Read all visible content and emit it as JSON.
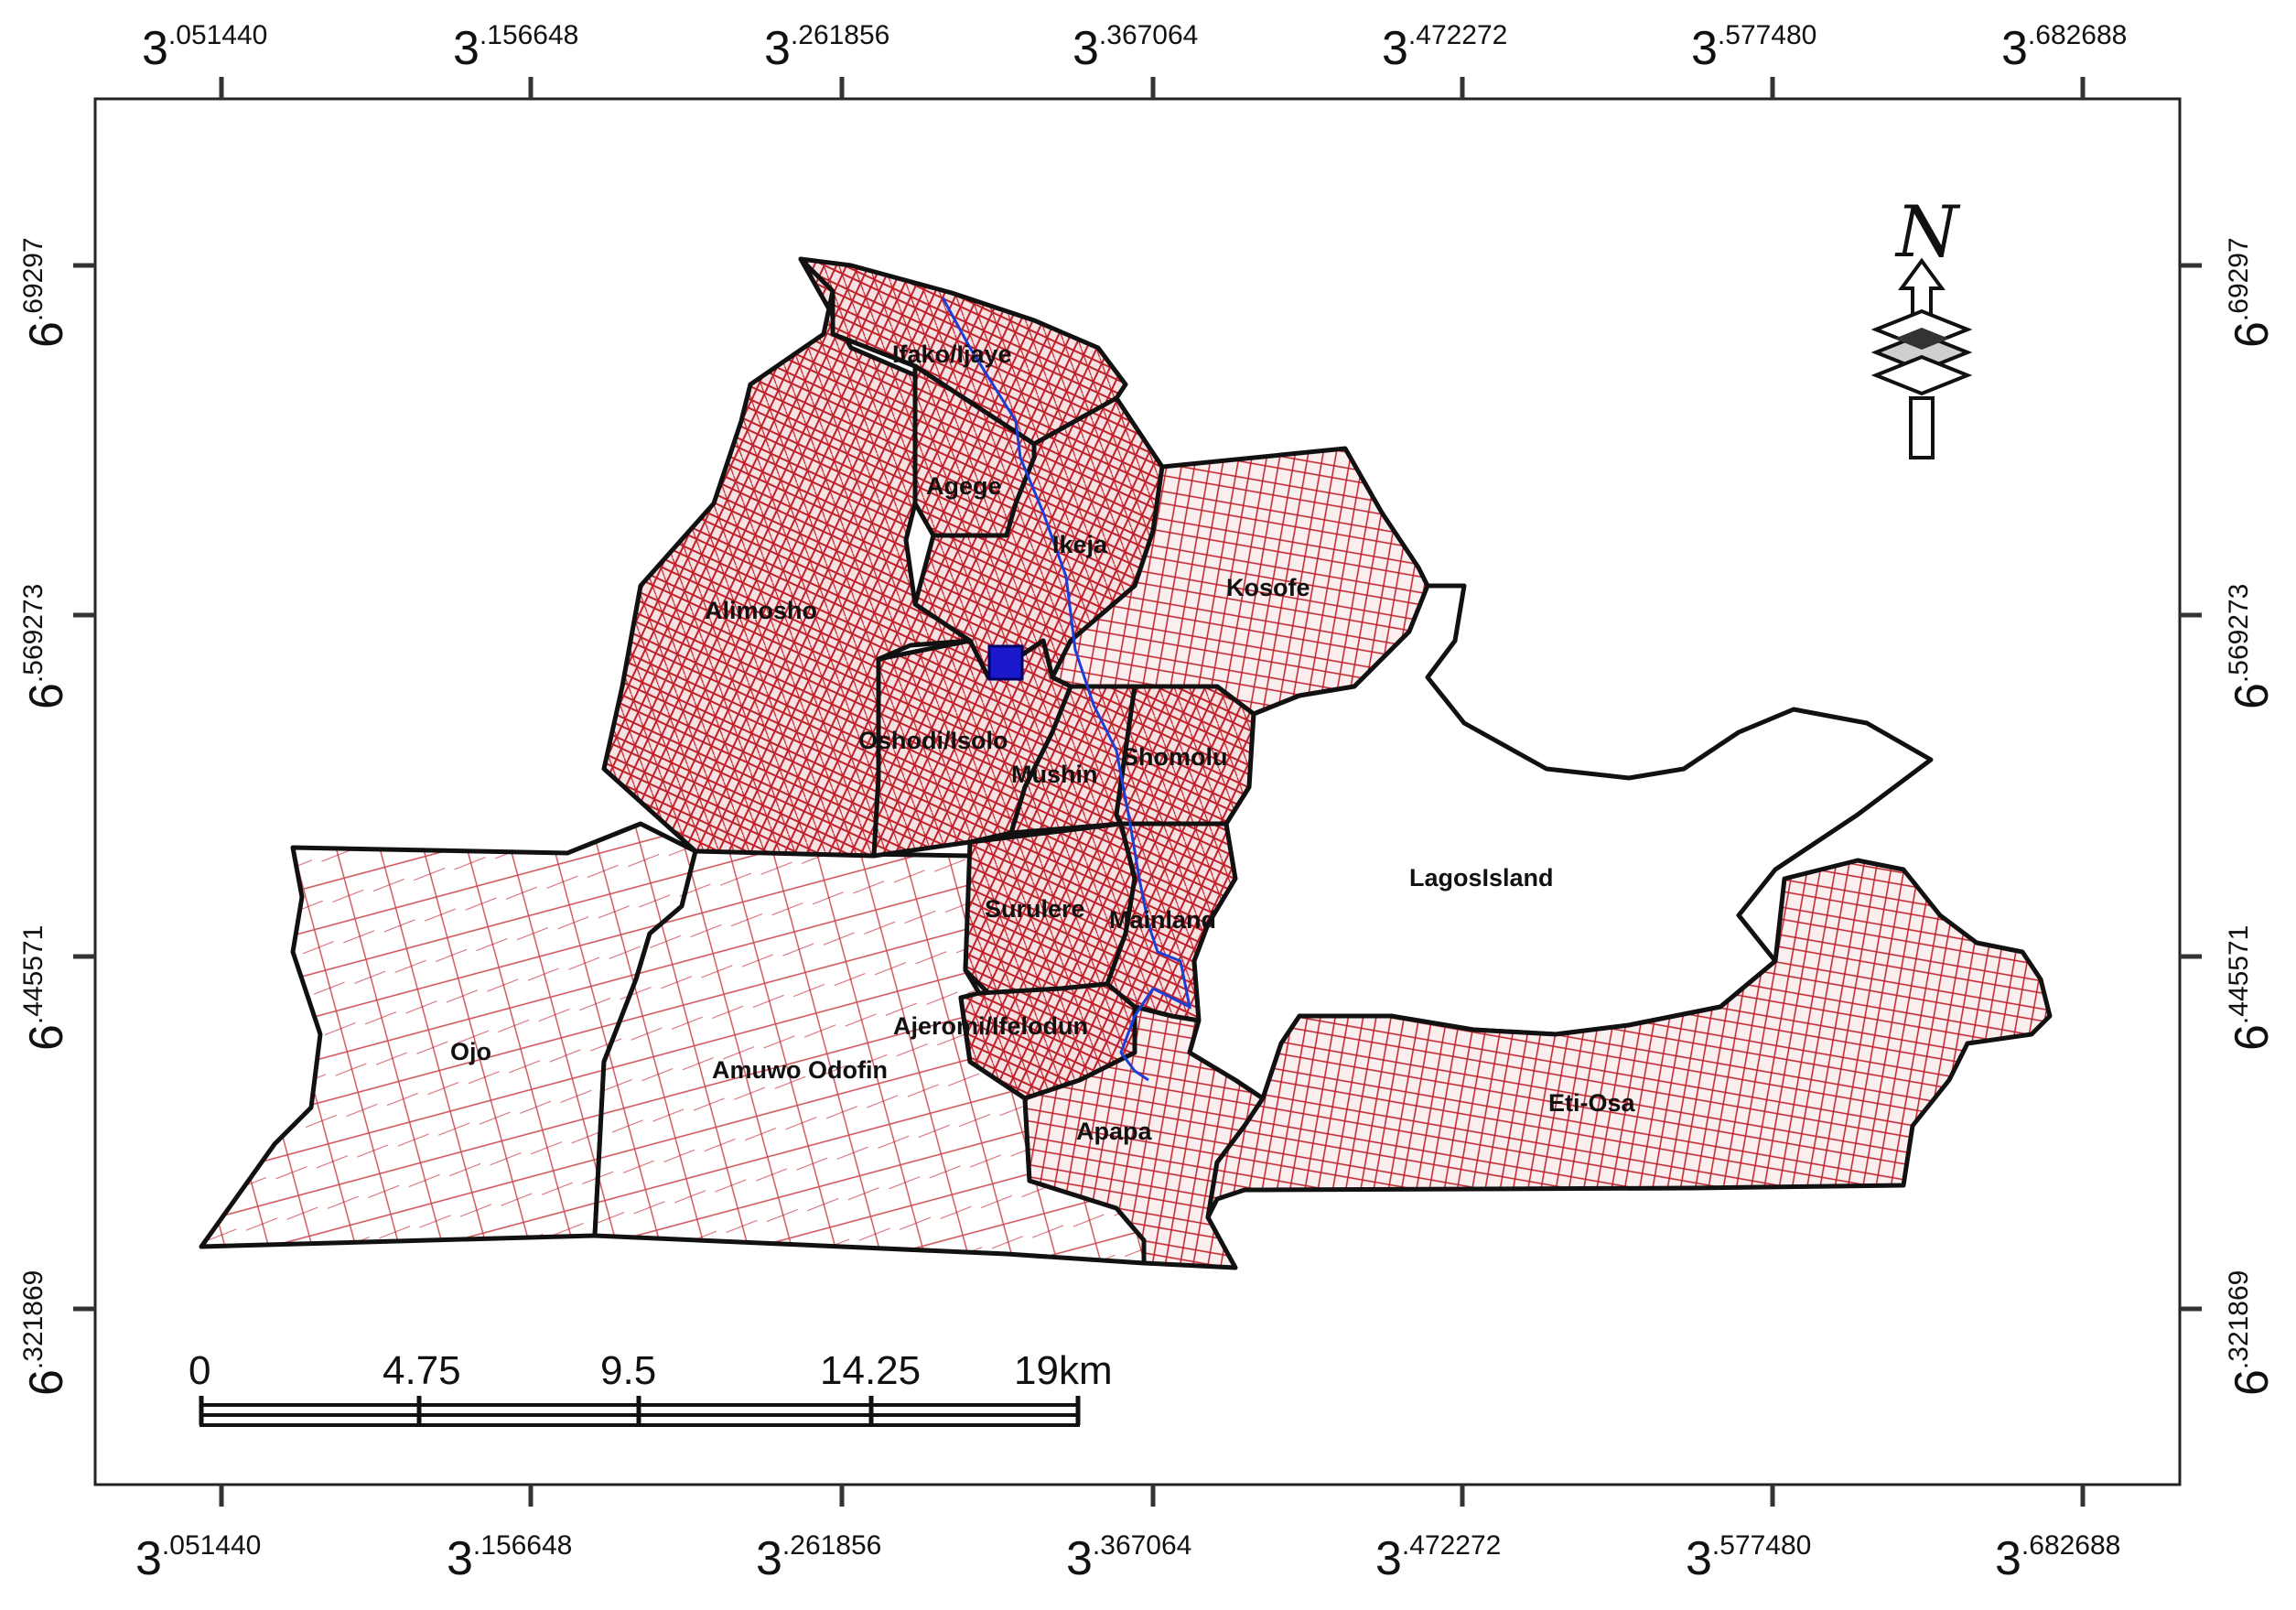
{
  "map": {
    "north_label": "N",
    "lgas": [
      {
        "id": "ifako-ijaye",
        "name": "Ifako/Ijaye"
      },
      {
        "id": "agege",
        "name": "Agege"
      },
      {
        "id": "ikeja",
        "name": "Ikeja"
      },
      {
        "id": "kosofe",
        "name": "Kosofe"
      },
      {
        "id": "alimosho",
        "name": "Alimosho"
      },
      {
        "id": "oshodi-isolo",
        "name": "Oshodi/Isolo"
      },
      {
        "id": "mushin",
        "name": "Mushin"
      },
      {
        "id": "shomolu",
        "name": "Shomolu"
      },
      {
        "id": "lagos-island",
        "name": "LagosIsland"
      },
      {
        "id": "surulere",
        "name": "Surulere"
      },
      {
        "id": "mainland",
        "name": "Mainland"
      },
      {
        "id": "ajeromi-ifelodun",
        "name": "Ajeromi/Ifelodun"
      },
      {
        "id": "ojo",
        "name": "Ojo"
      },
      {
        "id": "amuwo-odofin",
        "name": "Amuwo Odofin"
      },
      {
        "id": "apapa",
        "name": "Apapa"
      },
      {
        "id": "eti-osa",
        "name": "Eti-Osa"
      }
    ],
    "longitude_ticks": [
      {
        "base": "3",
        "frac": ".051440"
      },
      {
        "base": "3",
        "frac": ".156648"
      },
      {
        "base": "3",
        "frac": ".261856"
      },
      {
        "base": "3",
        "frac": ".367064"
      },
      {
        "base": "3",
        "frac": ".472272"
      },
      {
        "base": "3",
        "frac": ".577480"
      },
      {
        "base": "3",
        "frac": ".682688"
      }
    ],
    "latitude_ticks": [
      {
        "base": "6",
        "frac": ".69297"
      },
      {
        "base": "6",
        "frac": ".569273"
      },
      {
        "base": "6",
        "frac": ".445571"
      },
      {
        "base": "6",
        "frac": ".321869"
      }
    ],
    "scale_bar": {
      "labels": [
        "0",
        "4.75",
        "9.5",
        "14.25",
        "19km"
      ]
    },
    "colors": {
      "road_network": "#c0202a",
      "boundary": "#111111",
      "railway": "#1a3fd6",
      "marker": "#1a1acc",
      "frame": "#222222"
    }
  }
}
